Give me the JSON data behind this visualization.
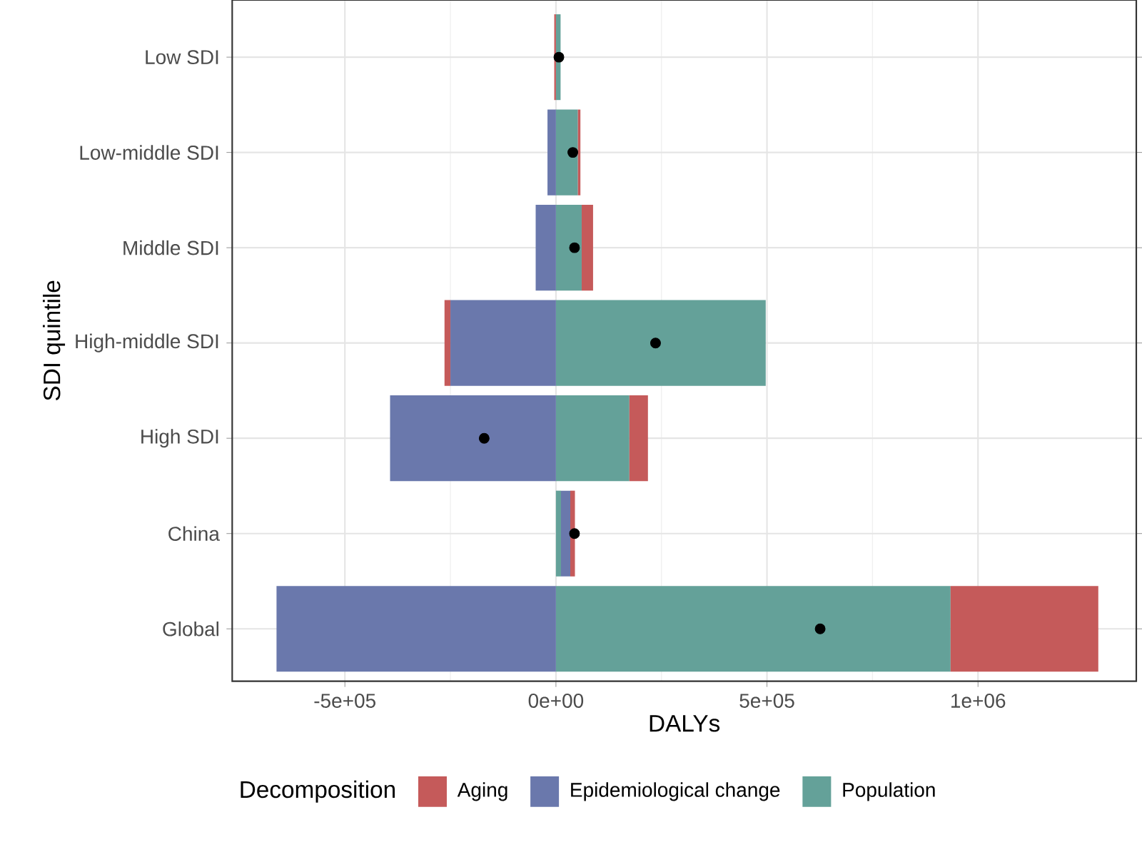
{
  "chart_data": {
    "type": "bar",
    "orientation": "horizontal",
    "stacked": true,
    "xlabel": "DALYs",
    "ylabel": "SDI quintile",
    "legend_title": "Decomposition",
    "legend": "bottom",
    "grid": true,
    "categories": [
      "Low SDI",
      "Low-middle SDI",
      "Middle SDI",
      "High-middle SDI",
      "High SDI",
      "China",
      "Global"
    ],
    "xlim": [
      -767000,
      1375000
    ],
    "xticks": [
      {
        "value": -500000,
        "label": "-5e+05"
      },
      {
        "value": 0,
        "label": "0e+00"
      },
      {
        "value": 500000,
        "label": "5e+05"
      },
      {
        "value": 1000000,
        "label": "1e+06"
      }
    ],
    "series": [
      {
        "name": "Population",
        "color": "#64a199",
        "values": [
          11000,
          52000,
          61000,
          497000,
          174000,
          12000,
          935000
        ]
      },
      {
        "name": "Epidemiological change",
        "color": "#6a78ac",
        "values": [
          0,
          -20000,
          -48000,
          -250000,
          -393000,
          22000,
          -662000
        ]
      },
      {
        "name": "Aging",
        "color": "#c55a5a",
        "values": [
          -4000,
          6000,
          27000,
          -14000,
          44000,
          11000,
          350000
        ]
      },
      {
        "type": "scatter",
        "marker": "circle",
        "color": "#000000",
        "x": [
          "Low SDI",
          "Low-middle SDI",
          "Middle SDI",
          "High-middle SDI",
          "High SDI",
          "China",
          "Global"
        ],
        "values": [
          7000,
          40000,
          44000,
          236000,
          -170000,
          44000,
          626000
        ]
      }
    ]
  }
}
